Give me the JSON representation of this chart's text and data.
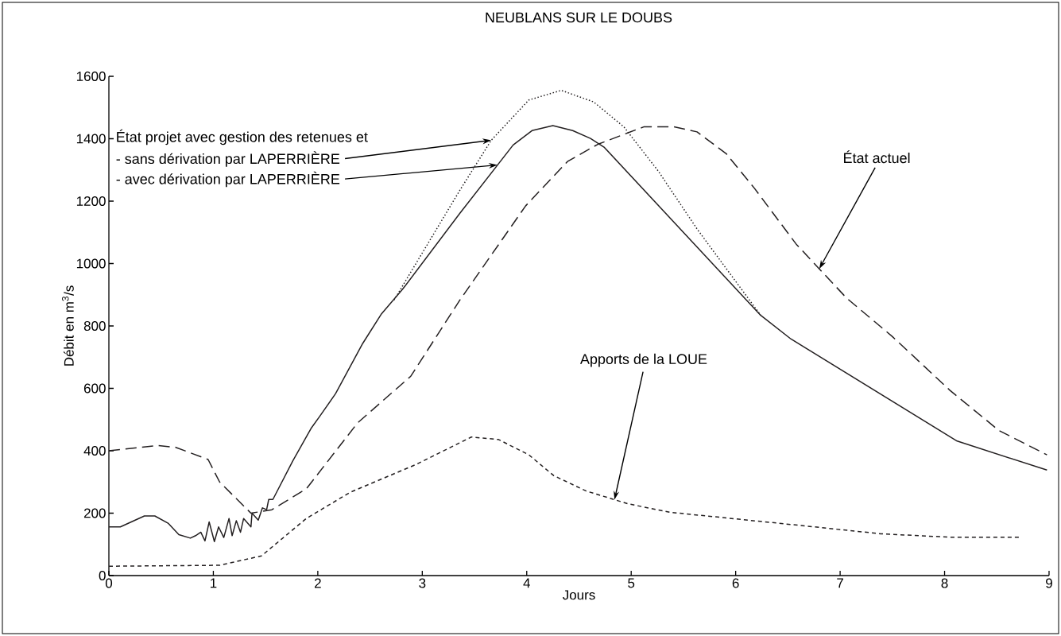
{
  "chart_data": {
    "type": "line",
    "title": "NEUBLANS SUR LE DOUBS",
    "xlabel": "Jours",
    "ylabel": "Débit en m$^{3}$/s",
    "xlim": [
      0,
      9
    ],
    "ylim": [
      0,
      1600
    ],
    "xticks": [
      0,
      1,
      2,
      3,
      4,
      5,
      6,
      7,
      8,
      9
    ],
    "yticks": [
      0,
      200,
      400,
      600,
      800,
      1000,
      1200,
      1400,
      1600
    ],
    "grid": false,
    "marker": "none",
    "series": [
      {
        "color": "#231f20",
        "line_style": "longdash",
        "x": [
          0,
          0.47,
          0.64,
          0.95,
          1.06,
          1.36,
          1.56,
          1.89,
          2.38,
          2.89,
          3.36,
          3.99,
          4.39,
          4.68,
          4.97,
          5.12,
          5.41,
          5.63,
          5.91,
          6.18,
          6.58,
          7.06,
          7.5,
          8.05,
          8.52,
          8.98
        ],
        "values": [
          400,
          417,
          411,
          372,
          300,
          200,
          211,
          278,
          489,
          639,
          883,
          1185,
          1327,
          1382,
          1419,
          1438,
          1438,
          1422,
          1352,
          1241,
          1062,
          890,
          766,
          594,
          465,
          387
        ]
      },
      {
        "color": "#231f20",
        "line_style": "solid",
        "x": [
          0,
          0.11,
          0.34,
          0.44,
          0.57,
          0.67,
          0.78,
          0.83,
          0.88,
          0.92,
          0.96,
          1.01,
          1.05,
          1.1,
          1.15,
          1.18,
          1.22,
          1.26,
          1.29,
          1.36,
          1.37,
          1.43,
          1.47,
          1.51,
          1.53,
          1.57,
          1.76,
          1.94,
          2.02,
          2.17,
          2.43,
          2.61,
          2.81,
          3.36,
          3.87,
          4.05,
          4.25,
          4.44,
          4.61,
          4.74,
          6.24,
          6.53,
          8.12,
          8.98
        ],
        "values": [
          156,
          156,
          191,
          191,
          167,
          131,
          120,
          128,
          139,
          111,
          172,
          109,
          156,
          122,
          183,
          128,
          176,
          139,
          183,
          156,
          200,
          178,
          217,
          211,
          244,
          244,
          367,
          474,
          511,
          583,
          744,
          839,
          917,
          1161,
          1380,
          1426,
          1442,
          1426,
          1401,
          1373,
          834,
          758,
          431,
          338
        ]
      },
      {
        "color": "#231f20",
        "line_style": "dotted",
        "x": [
          2.73,
          3.36,
          3.66,
          4.02,
          4.33,
          4.64,
          4.93,
          5.26,
          5.63,
          6.24
        ],
        "values": [
          883,
          1235,
          1395,
          1524,
          1555,
          1518,
          1438,
          1296,
          1111,
          834
        ]
      },
      {
        "color": "#231f20",
        "line_style": "dashed",
        "x": [
          0,
          1.06,
          1.46,
          1.89,
          2.31,
          2.94,
          3.47,
          3.73,
          4.02,
          4.26,
          4.57,
          4.97,
          5.37,
          6.55,
          7.39,
          8.05,
          8.73
        ],
        "values": [
          30,
          33,
          63,
          183,
          267,
          356,
          444,
          436,
          387,
          320,
          271,
          230,
          203,
          163,
          134,
          123,
          123
        ]
      }
    ],
    "annotations": [
      "État projet avec gestion des retenues et",
      {
        "text": "- sans dérivation par LAPERRIÈRE",
        "x": 3.66,
        "y": 1395
      },
      {
        "text": "- avec dérivation par LAPERRIÈRE",
        "x": 3.72,
        "y": 1316
      },
      {
        "text": "État actuel",
        "x": 6.8,
        "y": 983
      },
      {
        "text": "Apports de la LOUE",
        "x": 4.84,
        "y": 243
      }
    ]
  }
}
